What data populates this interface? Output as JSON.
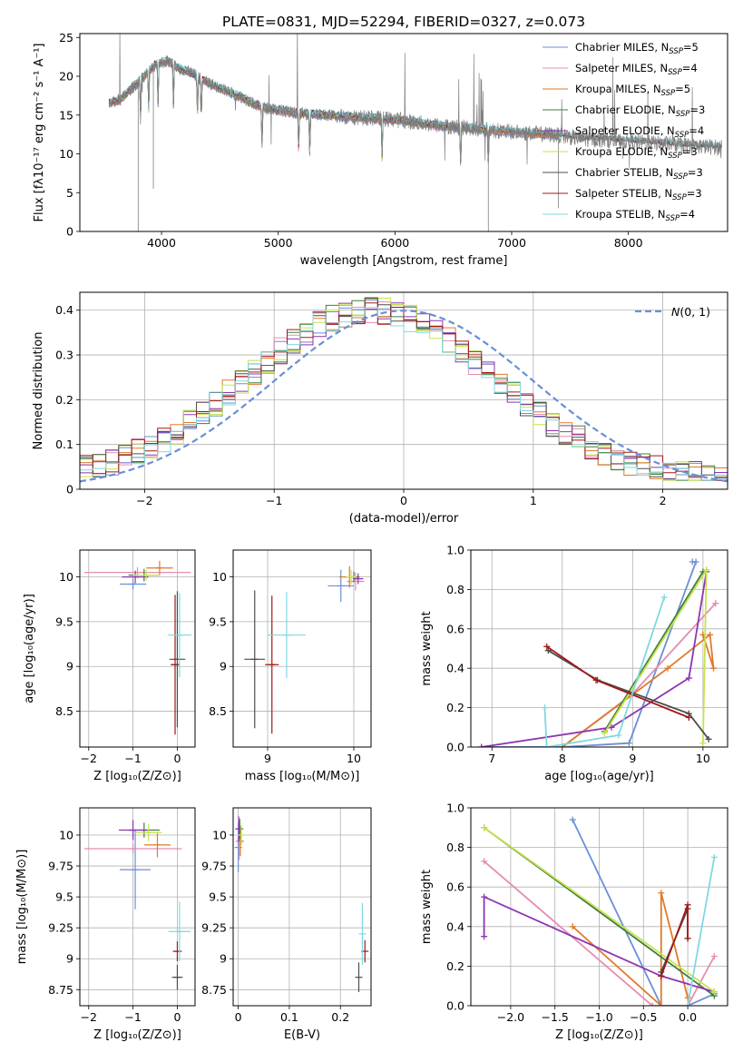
{
  "figure": {
    "title": "PLATE=0831, MJD=52294, FIBERID=0327, z=0.073"
  },
  "colors": {
    "Chabrier MILES": "#6a8fd6",
    "Salpeter MILES": "#e58cb4",
    "Kroupa MILES": "#e07a2a",
    "Chabrier ELODIE": "#3f7f3f",
    "Salpeter ELODIE": "#8e35b0",
    "Kroupa ELODIE": "#c8e34a",
    "Chabrier STELIB": "#4d4d4d",
    "Salpeter STELIB": "#a31818",
    "Kroupa STELIB": "#7fd8e0",
    "data": "#808080",
    "normal": "#6a8fd6",
    "grid": "#b0b0b0"
  },
  "chart_data": [
    {
      "id": "spectrum",
      "type": "line",
      "title": "PLATE=0831, MJD=52294, FIBERID=0327, z=0.073",
      "xlabel": "wavelength [Angstrom, rest frame]",
      "ylabel": "Flux [fλ10⁻¹⁷ erg cm⁻² s⁻¹ A⁻¹]",
      "xlim": [
        3300,
        8850
      ],
      "ylim": [
        0,
        25.5
      ],
      "xticks": [
        4000,
        5000,
        6000,
        7000,
        8000
      ],
      "yticks": [
        0,
        5,
        10,
        15,
        20,
        25
      ],
      "grid": false,
      "legend_position": "top-right",
      "continuum": {
        "x": [
          3550,
          3650,
          3750,
          3850,
          3950,
          4050,
          4150,
          4250,
          4350,
          4500,
          4700,
          4850,
          4950,
          5050,
          5200,
          5400,
          5600,
          5800,
          6000,
          6200,
          6400,
          6600,
          6800,
          7000,
          7200,
          7400,
          7600,
          7800,
          8000,
          8200,
          8400,
          8600,
          8800
        ],
        "y": [
          16.5,
          17.0,
          18.5,
          20.0,
          21.5,
          22.0,
          21.0,
          20.5,
          19.5,
          18.5,
          17.2,
          16.0,
          15.8,
          15.5,
          15.2,
          15.0,
          14.8,
          14.6,
          14.4,
          14.0,
          13.6,
          13.4,
          13.1,
          12.8,
          12.6,
          12.4,
          11.9,
          11.8,
          11.6,
          11.4,
          11.2,
          11.0,
          10.8
        ]
      },
      "series": [
        {
          "name": "Chabrier MILES, N_SSP=5",
          "legend": "Chabrier MILES, N",
          "sub": "SSP",
          "suffix": "=5",
          "key": "Chabrier MILES",
          "xmax": 7400
        },
        {
          "name": "Salpeter MILES, N_SSP=4",
          "legend": "Salpeter MILES, N",
          "sub": "SSP",
          "suffix": "=4",
          "key": "Salpeter MILES",
          "xmax": 7400
        },
        {
          "name": "Kroupa MILES, N_SSP=5",
          "legend": "Kroupa MILES, N",
          "sub": "SSP",
          "suffix": "=5",
          "key": "Kroupa MILES",
          "xmax": 7400
        },
        {
          "name": "Chabrier ELODIE, N_SSP=3",
          "legend": "Chabrier ELODIE, N",
          "sub": "SSP",
          "suffix": "=3",
          "key": "Chabrier ELODIE",
          "xmax": 6800
        },
        {
          "name": "Salpeter ELODIE, N_SSP=4",
          "legend": "Salpeter ELODIE, N",
          "sub": "SSP",
          "suffix": "=4",
          "key": "Salpeter ELODIE",
          "xmax": 6800
        },
        {
          "name": "Kroupa ELODIE, N_SSP=3",
          "legend": "Kroupa ELODIE, N",
          "sub": "SSP",
          "suffix": "=3",
          "key": "Kroupa ELODIE",
          "xmax": 6800
        },
        {
          "name": "Chabrier STELIB, N_SSP=3",
          "legend": "Chabrier STELIB, N",
          "sub": "SSP",
          "suffix": "=3",
          "key": "Chabrier STELIB",
          "xmax": 8800
        },
        {
          "name": "Salpeter STELIB, N_SSP=3",
          "legend": "Salpeter STELIB, N",
          "sub": "SSP",
          "suffix": "=3",
          "key": "Salpeter STELIB",
          "xmax": 8800
        },
        {
          "name": "Kroupa STELIB, N_SSP=4",
          "legend": "Kroupa STELIB, N",
          "sub": "SSP",
          "suffix": "=4",
          "key": "Kroupa STELIB",
          "xmax": 8800
        }
      ]
    },
    {
      "id": "residuals",
      "type": "line",
      "xlabel": "(data-model)/error",
      "ylabel": "Normed distribution",
      "xlim": [
        -2.5,
        2.5
      ],
      "ylim": [
        0,
        0.44
      ],
      "xticks": [
        -2,
        -1,
        0,
        1,
        2
      ],
      "yticks": [
        0.0,
        0.1,
        0.2,
        0.3,
        0.4
      ],
      "grid": true,
      "legend_position": "top-right",
      "legend": [
        "N(0,1)"
      ],
      "normal_curve": {
        "mean": 0,
        "sigma": 1
      },
      "bin_width": 0.1
    },
    {
      "id": "Z-age",
      "type": "scatter",
      "xlabel": "Z [log₁₀(Z/Z⊙)]",
      "ylabel": "age  [log₁₀(age/yr)]",
      "xlim": [
        -2.2,
        0.4
      ],
      "ylim": [
        8.1,
        10.3
      ],
      "xticks": [
        -2,
        -1,
        0
      ],
      "yticks": [
        8.5,
        9.0,
        9.5,
        10.0
      ],
      "grid": true,
      "points": [
        {
          "key": "Chabrier MILES",
          "x": -1.0,
          "y": 9.92,
          "xerr": 0.3,
          "yerr": 0.06
        },
        {
          "key": "Salpeter MILES",
          "x": -0.9,
          "y": 10.05,
          "xerr": 1.2,
          "yerr": 0.06
        },
        {
          "key": "Kroupa MILES",
          "x": -0.4,
          "y": 10.1,
          "xerr": 0.3,
          "yerr": 0.08
        },
        {
          "key": "Chabrier ELODIE",
          "x": -0.75,
          "y": 10.02,
          "xerr": 0.35,
          "yerr": 0.07
        },
        {
          "key": "Salpeter ELODIE",
          "x": -0.95,
          "y": 10.0,
          "xerr": 0.3,
          "yerr": 0.07
        },
        {
          "key": "Kroupa ELODIE",
          "x": -0.7,
          "y": 10.02,
          "xerr": 0.3,
          "yerr": 0.06
        },
        {
          "key": "Chabrier STELIB",
          "x": 0.0,
          "y": 9.08,
          "xerr": 0.18,
          "yerr": 0.76
        },
        {
          "key": "Salpeter STELIB",
          "x": -0.05,
          "y": 9.02,
          "xerr": 0.1,
          "yerr": 0.78
        },
        {
          "key": "Kroupa STELIB",
          "x": 0.05,
          "y": 9.35,
          "xerr": 0.27,
          "yerr": 0.47
        }
      ]
    },
    {
      "id": "mass-age",
      "type": "scatter",
      "xlabel": "mass [log₁₀(M/M⊙)]",
      "ylabel": "",
      "xlim": [
        8.6,
        10.2
      ],
      "ylim": [
        8.1,
        10.3
      ],
      "xticks": [
        9,
        10
      ],
      "yticks": [
        8.5,
        9.0,
        9.5,
        10.0
      ],
      "grid": true,
      "points": [
        {
          "key": "Chabrier MILES",
          "x": 9.85,
          "y": 9.9,
          "xerr": 0.15,
          "yerr": 0.18
        },
        {
          "key": "Salpeter MILES",
          "x": 10.02,
          "y": 9.95,
          "xerr": 0.1,
          "yerr": 0.1
        },
        {
          "key": "Kroupa MILES",
          "x": 9.95,
          "y": 10.0,
          "xerr": 0.12,
          "yerr": 0.12
        },
        {
          "key": "Chabrier ELODIE",
          "x": 10.0,
          "y": 10.0,
          "xerr": 0.06,
          "yerr": 0.06
        },
        {
          "key": "Salpeter ELODIE",
          "x": 10.05,
          "y": 9.98,
          "xerr": 0.06,
          "yerr": 0.06
        },
        {
          "key": "Kroupa ELODIE",
          "x": 9.97,
          "y": 10.0,
          "xerr": 0.06,
          "yerr": 0.08
        },
        {
          "key": "Chabrier STELIB",
          "x": 8.85,
          "y": 9.08,
          "xerr": 0.12,
          "yerr": 0.77
        },
        {
          "key": "Salpeter STELIB",
          "x": 9.05,
          "y": 9.02,
          "xerr": 0.08,
          "yerr": 0.77
        },
        {
          "key": "Kroupa STELIB",
          "x": 9.22,
          "y": 9.35,
          "xerr": 0.22,
          "yerr": 0.48
        }
      ]
    },
    {
      "id": "age-weight",
      "type": "line",
      "xlabel": "age  [log₁₀(age/yr)]",
      "ylabel": "mass weight",
      "xlim": [
        6.7,
        10.35
      ],
      "ylim": [
        0,
        1.0
      ],
      "xticks": [
        7,
        8,
        9,
        10
      ],
      "yticks": [
        0.0,
        0.2,
        0.4,
        0.6,
        0.8,
        1.0
      ],
      "grid": true,
      "series": [
        {
          "key": "Chabrier MILES",
          "x": [
            6.85,
            8.0,
            8.95,
            9.9,
            9.85
          ],
          "y": [
            0.0,
            0.0,
            0.02,
            0.94,
            0.94
          ]
        },
        {
          "key": "Salpeter MILES",
          "x": [
            8.0,
            9.0,
            10.18,
            10.18
          ],
          "y": [
            0.0,
            0.27,
            0.73,
            0.73
          ]
        },
        {
          "key": "Kroupa MILES",
          "x": [
            8.0,
            9.5,
            10.1,
            10.15,
            10.0
          ],
          "y": [
            0.0,
            0.4,
            0.57,
            0.4,
            0.57
          ]
        },
        {
          "key": "Chabrier ELODIE",
          "x": [
            8.6,
            10.0
          ],
          "y": [
            0.08,
            0.89
          ]
        },
        {
          "key": "Salpeter ELODIE",
          "x": [
            6.85,
            8.7,
            9.8,
            10.05
          ],
          "y": [
            0.0,
            0.1,
            0.35,
            0.89
          ]
        },
        {
          "key": "Kroupa ELODIE",
          "x": [
            8.6,
            10.05,
            10.0
          ],
          "y": [
            0.07,
            0.9,
            0.02
          ]
        },
        {
          "key": "Chabrier STELIB",
          "x": [
            7.8,
            8.5,
            9.8,
            10.08
          ],
          "y": [
            0.49,
            0.34,
            0.17,
            0.04
          ]
        },
        {
          "key": "Salpeter STELIB",
          "x": [
            7.78,
            8.48,
            9.8
          ],
          "y": [
            0.51,
            0.34,
            0.15
          ]
        },
        {
          "key": "Kroupa STELIB",
          "x": [
            7.75,
            7.78,
            8.8,
            9.45
          ],
          "y": [
            0.2,
            0.0,
            0.06,
            0.76
          ]
        }
      ]
    },
    {
      "id": "Z-mass",
      "type": "scatter",
      "xlabel": "Z [log₁₀(Z/Z⊙)]",
      "ylabel": "mass [log₁₀(M/M⊙)]",
      "xlim": [
        -2.2,
        0.4
      ],
      "ylim": [
        8.62,
        10.22
      ],
      "xticks": [
        -2,
        -1,
        0
      ],
      "yticks": [
        8.75,
        9.0,
        9.25,
        9.5,
        9.75,
        10.0
      ],
      "grid": true,
      "points": [
        {
          "key": "Chabrier MILES",
          "x": -0.95,
          "y": 9.72,
          "xerr": 0.35,
          "yerr": 0.32
        },
        {
          "key": "Salpeter MILES",
          "x": -1.0,
          "y": 9.89,
          "xerr": 1.1,
          "yerr": 0.04
        },
        {
          "key": "Kroupa MILES",
          "x": -0.45,
          "y": 9.92,
          "xerr": 0.3,
          "yerr": 0.1
        },
        {
          "key": "Chabrier ELODIE",
          "x": -0.75,
          "y": 10.04,
          "xerr": 0.35,
          "yerr": 0.06
        },
        {
          "key": "Salpeter ELODIE",
          "x": -1.0,
          "y": 10.04,
          "xerr": 0.32,
          "yerr": 0.08
        },
        {
          "key": "Kroupa ELODIE",
          "x": -0.65,
          "y": 10.02,
          "xerr": 0.3,
          "yerr": 0.07
        },
        {
          "key": "Chabrier STELIB",
          "x": 0.0,
          "y": 8.85,
          "xerr": 0.12,
          "yerr": 0.1
        },
        {
          "key": "Salpeter STELIB",
          "x": 0.0,
          "y": 9.06,
          "xerr": 0.1,
          "yerr": 0.08
        },
        {
          "key": "Kroupa STELIB",
          "x": 0.05,
          "y": 9.22,
          "xerr": 0.25,
          "yerr": 0.24
        }
      ]
    },
    {
      "id": "ebv-mass",
      "type": "scatter",
      "xlabel": "E(B-V)",
      "ylabel": "",
      "xlim": [
        -0.01,
        0.26
      ],
      "ylim": [
        8.62,
        10.22
      ],
      "xticks": [
        0.0,
        0.1,
        0.2
      ],
      "yticks": [
        8.75,
        9.0,
        9.25,
        9.5,
        9.75,
        10.0
      ],
      "grid": true,
      "points": [
        {
          "key": "Chabrier MILES",
          "x": 0.0,
          "y": 9.9,
          "xerr": 0.0,
          "yerr": 0.2
        },
        {
          "key": "Salpeter MILES",
          "x": 0.002,
          "y": 9.95,
          "xerr": 0.0,
          "yerr": 0.15
        },
        {
          "key": "Kroupa MILES",
          "x": 0.004,
          "y": 9.95,
          "xerr": 0.0,
          "yerr": 0.12
        },
        {
          "key": "Chabrier ELODIE",
          "x": 0.003,
          "y": 10.05,
          "xerr": 0.0,
          "yerr": 0.08
        },
        {
          "key": "Salpeter ELODIE",
          "x": 0.001,
          "y": 10.05,
          "xerr": 0.0,
          "yerr": 0.1
        },
        {
          "key": "Kroupa ELODIE",
          "x": 0.006,
          "y": 10.0,
          "xerr": 0.0,
          "yerr": 0.08
        },
        {
          "key": "Chabrier STELIB",
          "x": 0.236,
          "y": 8.85,
          "xerr": 0.0,
          "yerr": 0.12
        },
        {
          "key": "Salpeter STELIB",
          "x": 0.248,
          "y": 9.06,
          "xerr": 0.0,
          "yerr": 0.09
        },
        {
          "key": "Kroupa STELIB",
          "x": 0.243,
          "y": 9.2,
          "xerr": 0.0,
          "yerr": 0.25
        }
      ]
    },
    {
      "id": "Z-weight",
      "type": "line",
      "xlabel": "Z [log₁₀(Z/Z⊙)]",
      "ylabel": "mass weight",
      "xlim": [
        -2.45,
        0.45
      ],
      "ylim": [
        0,
        1.0
      ],
      "xticks": [
        -2.0,
        -1.5,
        -1.0,
        -0.5,
        0.0
      ],
      "yticks": [
        0.0,
        0.2,
        0.4,
        0.6,
        0.8,
        1.0
      ],
      "grid": true,
      "series": [
        {
          "key": "Chabrier MILES",
          "x": [
            -1.3,
            -0.3,
            0.0,
            0.3
          ],
          "y": [
            0.94,
            0.0,
            0.0,
            0.06
          ]
        },
        {
          "key": "Salpeter MILES",
          "x": [
            -2.3,
            -0.4,
            0.0,
            0.3
          ],
          "y": [
            0.73,
            0.0,
            0.0,
            0.25
          ]
        },
        {
          "key": "Kroupa MILES",
          "x": [
            -1.3,
            -0.3,
            -0.3,
            0.0
          ],
          "y": [
            0.4,
            0.0,
            0.57,
            0.04
          ]
        },
        {
          "key": "Chabrier ELODIE",
          "x": [
            -2.3,
            0.3
          ],
          "y": [
            0.9,
            0.05
          ]
        },
        {
          "key": "Salpeter ELODIE",
          "x": [
            -2.3,
            -2.3,
            -0.3,
            0.3
          ],
          "y": [
            0.35,
            0.55,
            0.15,
            0.07
          ]
        },
        {
          "key": "Kroupa ELODIE",
          "x": [
            -2.3,
            0.3
          ],
          "y": [
            0.9,
            0.07
          ]
        },
        {
          "key": "Chabrier STELIB",
          "x": [
            -0.3,
            0.0,
            0.0
          ],
          "y": [
            0.17,
            0.49,
            0.34
          ]
        },
        {
          "key": "Salpeter STELIB",
          "x": [
            -0.3,
            0.0,
            0.0
          ],
          "y": [
            0.15,
            0.51,
            0.34
          ]
        },
        {
          "key": "Kroupa STELIB",
          "x": [
            0.0,
            0.3
          ],
          "y": [
            0.0,
            0.75
          ]
        }
      ]
    }
  ]
}
